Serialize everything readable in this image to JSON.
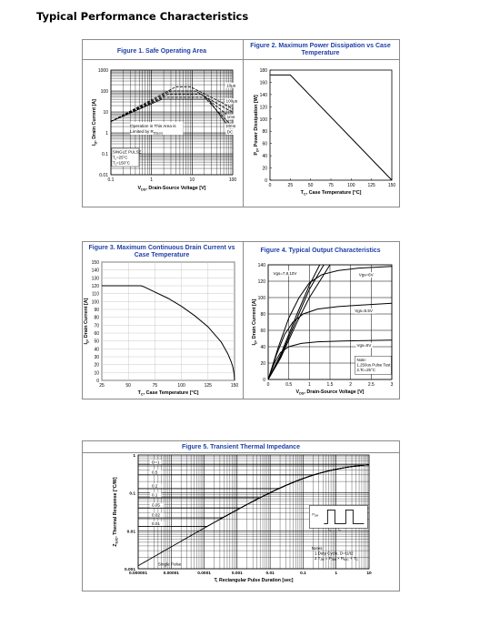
{
  "page": {
    "heading": "Typical Performance Characteristics"
  },
  "chart_data": [
    {
      "id": "fig1",
      "type": "line",
      "title": "Figure 1. Safe Operating Area",
      "xlabel_pre": "V",
      "xlabel_sub": "DS",
      "xlabel_post": ", Drain-Source Voltage [V]",
      "ylabel_pre": "I",
      "ylabel_sub": "D",
      "ylabel_post": ", Drain Current [A]",
      "xscale": "log",
      "yscale": "log",
      "xlim": [
        0.1,
        100
      ],
      "ylim": [
        0.01,
        1000
      ],
      "xticks": [
        {
          "v": 0.1,
          "label": "0.1"
        },
        {
          "v": 1,
          "label": "1"
        },
        {
          "v": 10,
          "label": "10"
        },
        {
          "v": 100,
          "label": "100"
        }
      ],
      "yticks": [
        {
          "v": 0.01,
          "label": "0.01"
        },
        {
          "v": 0.1,
          "label": "0.1"
        },
        {
          "v": 1,
          "label": "1"
        },
        {
          "v": 10,
          "label": "10"
        },
        {
          "v": 100,
          "label": "100"
        },
        {
          "v": 1000,
          "label": "1000"
        }
      ],
      "series": [
        {
          "name": "10µs",
          "dash": true,
          "points": [
            [
              0.1,
              3.5
            ],
            [
              4,
              160
            ],
            [
              9,
              160
            ],
            [
              60,
              25
            ],
            [
              100,
              14
            ]
          ]
        },
        {
          "name": "100µs",
          "dash": true,
          "points": [
            [
              0.1,
              3.5
            ],
            [
              3,
              100
            ],
            [
              12,
              100
            ],
            [
              70,
              14
            ],
            [
              100,
              10
            ]
          ]
        },
        {
          "name": "1ms",
          "dash": true,
          "points": [
            [
              0.1,
              3.5
            ],
            [
              2.5,
              70
            ],
            [
              17,
              70
            ],
            [
              75,
              7
            ],
            [
              100,
              5
            ]
          ]
        },
        {
          "name": "10ms",
          "dash": true,
          "points": [
            [
              0.1,
              3.5
            ],
            [
              2,
              50
            ],
            [
              20,
              50
            ],
            [
              80,
              3
            ],
            [
              100,
              2.2
            ]
          ]
        },
        {
          "name": "DC",
          "dash": false,
          "points": [
            [
              0.1,
              3.5
            ],
            [
              1.8,
              40
            ],
            [
              25,
              40
            ],
            [
              85,
              1.6
            ],
            [
              100,
              1.2
            ]
          ]
        }
      ],
      "labels": [
        {
          "text": "10µs",
          "x": 70,
          "y": 160
        },
        {
          "text": "100µs",
          "x": 68,
          "y": 28
        },
        {
          "text": "1ms",
          "x": 72,
          "y": 5
        },
        {
          "text": "10ms",
          "x": 66,
          "y": 1.8
        },
        {
          "text": "DC",
          "x": 72,
          "y": 0.95
        }
      ],
      "notes": [
        "Operation in This Area is",
        "Limited by R"
      ],
      "notes_sub": "DS(on)",
      "pulse_note": [
        "SINGLE PULSE",
        "T=25°C",
        "T=150°C"
      ],
      "pulse_subs": [
        "c",
        "J"
      ]
    },
    {
      "id": "fig2",
      "type": "line",
      "title": [
        "Figure 2. Maximum Power Dissipation vs Case",
        "Temperature"
      ],
      "xlabel_pre": "T",
      "xlabel_sub": "C",
      "xlabel_post": ", Case Temperature [°C]",
      "ylabel_pre": "P",
      "ylabel_sub": "D",
      "ylabel_post": ", Power Dissipation [W]",
      "xlim": [
        0,
        150
      ],
      "ylim": [
        0,
        180
      ],
      "xticks": [
        0,
        25,
        50,
        75,
        100,
        125,
        150
      ],
      "yticks": [
        0,
        20,
        40,
        60,
        80,
        100,
        120,
        140,
        160,
        180
      ],
      "series": [
        {
          "points": [
            [
              0,
              172
            ],
            [
              25,
              172
            ],
            [
              150,
              0
            ]
          ]
        }
      ]
    },
    {
      "id": "fig3",
      "type": "line",
      "title": [
        "Figure 3. Maximum Continuous Drain Current vs",
        "Case Temperature"
      ],
      "xlabel_pre": "T",
      "xlabel_sub": "C",
      "xlabel_post": ", Case Temperature [°C]",
      "ylabel_pre": "I",
      "ylabel_sub": "D",
      "ylabel_post": ", Drain Current [A]",
      "xlim": [
        25,
        150
      ],
      "ylim": [
        0,
        150
      ],
      "xticks": [
        25,
        50,
        75,
        100,
        125,
        150
      ],
      "yticks": [
        0,
        10,
        20,
        30,
        40,
        50,
        60,
        70,
        80,
        90,
        100,
        110,
        120,
        130,
        140,
        150
      ],
      "series": [
        {
          "points": [
            [
              25,
              120
            ],
            [
              62,
              120
            ],
            [
              65,
              118.5
            ],
            [
              75,
              112
            ],
            [
              87.5,
              104
            ],
            [
              100,
              94
            ],
            [
              112.5,
              82
            ],
            [
              125,
              68
            ],
            [
              137.5,
              48.5
            ],
            [
              143.75,
              33.5
            ],
            [
              146.875,
              23.5
            ],
            [
              148.4375,
              16.8
            ],
            [
              149.6,
              8.2
            ],
            [
              150,
              0
            ]
          ]
        }
      ]
    },
    {
      "id": "fig4",
      "type": "line",
      "title": "Figure 4. Typical Output Characteristics",
      "xlabel_pre": "V",
      "xlabel_sub": "DS",
      "xlabel_post": ", Drain-Source Voltage [V]",
      "ylabel_pre": "I",
      "ylabel_sub": "D",
      "ylabel_post": ", Drain Current [A]",
      "xlim": [
        0,
        3
      ],
      "ylim": [
        0,
        140
      ],
      "xticks": [
        {
          "v": 0,
          "label": "0"
        },
        {
          "v": 0.5,
          "label": "0.5"
        },
        {
          "v": 1,
          "label": "1"
        },
        {
          "v": 1.5,
          "label": "1.5"
        },
        {
          "v": 2,
          "label": "2"
        },
        {
          "v": 2.5,
          "label": "2.5"
        },
        {
          "v": 3,
          "label": "3"
        }
      ],
      "yticks": [
        0,
        20,
        40,
        60,
        80,
        100,
        120,
        140
      ],
      "series": [
        {
          "name": "Vgs=10V",
          "points": [
            [
              0,
              0
            ],
            [
              0.3,
              30
            ],
            [
              0.7,
              80
            ],
            [
              1.0,
              115
            ],
            [
              1.25,
              140
            ]
          ]
        },
        {
          "name": "Vgs=8V",
          "points": [
            [
              0,
              0
            ],
            [
              0.3,
              28
            ],
            [
              0.7,
              75
            ],
            [
              1.0,
              110
            ],
            [
              1.35,
              140
            ]
          ]
        },
        {
          "name": "Vgs=7V",
          "points": [
            [
              0,
              0
            ],
            [
              0.3,
              26
            ],
            [
              0.7,
              70
            ],
            [
              1.0,
              100
            ],
            [
              1.5,
              140
            ]
          ]
        },
        {
          "name": "Vgs=6V",
          "points": [
            [
              0,
              0
            ],
            [
              0.25,
              40
            ],
            [
              0.5,
              75
            ],
            [
              0.75,
              100
            ],
            [
              1.0,
              118
            ],
            [
              1.3,
              128
            ],
            [
              1.7,
              133
            ],
            [
              2.2,
              136
            ],
            [
              3,
              138
            ]
          ]
        },
        {
          "name": "Vgs=5.5V",
          "points": [
            [
              0,
              0
            ],
            [
              0.2,
              30
            ],
            [
              0.4,
              55
            ],
            [
              0.6,
              70
            ],
            [
              0.85,
              80
            ],
            [
              1.2,
              86
            ],
            [
              1.7,
              89
            ],
            [
              2.3,
              91
            ],
            [
              3,
              93
            ]
          ]
        },
        {
          "name": "Vgs=5V",
          "points": [
            [
              0,
              0
            ],
            [
              0.15,
              20
            ],
            [
              0.3,
              33
            ],
            [
              0.5,
              40
            ],
            [
              0.8,
              44
            ],
            [
              1.2,
              46
            ],
            [
              1.8,
              47
            ],
            [
              3,
              48
            ]
          ]
        }
      ],
      "labels": [
        {
          "text": "Vgs=7,8,10V",
          "x": 0.12,
          "y": 128
        },
        {
          "text": "Vgs=6V",
          "x": 2.2,
          "y": 126
        },
        {
          "text": "Vgs=5.5V",
          "x": 2.1,
          "y": 82
        },
        {
          "text": "Vgs=5V",
          "x": 2.15,
          "y": 40
        }
      ],
      "note": [
        "Note:",
        "1.250us Pulse Test",
        "2.Tc=25°C"
      ]
    },
    {
      "id": "fig5",
      "type": "line",
      "title": "Figure 5. Transient Thermal Impedance",
      "xlabel": "T, Rectangular Pulse Duration [sec]",
      "ylabel_pre": "Z",
      "ylabel_sub": "θJC",
      "ylabel_post": ", Thermal Response [°C/W]",
      "xscale": "log",
      "yscale": "log",
      "xlim": [
        1e-06,
        10
      ],
      "ylim": [
        0.001,
        1
      ],
      "xticks": [
        {
          "v": 1e-06,
          "label": "0.000001"
        },
        {
          "v": 1e-05,
          "label": "0.00001"
        },
        {
          "v": 0.0001,
          "label": "0.0001"
        },
        {
          "v": 0.001,
          "label": "0.001"
        },
        {
          "v": 0.01,
          "label": "0.01"
        },
        {
          "v": 0.1,
          "label": "0.1"
        },
        {
          "v": 1,
          "label": "1"
        },
        {
          "v": 10,
          "label": "10"
        }
      ],
      "yticks": [
        {
          "v": 0.001,
          "label": "0.001"
        },
        {
          "v": 0.01,
          "label": "0.01"
        },
        {
          "v": 0.1,
          "label": "0.1"
        },
        {
          "v": 1,
          "label": "1"
        }
      ],
      "series": [
        {
          "name": "D=1",
          "plateau": 0.55
        },
        {
          "name": "0.5",
          "plateau": 0.3
        },
        {
          "name": "0.2",
          "plateau": 0.13
        },
        {
          "name": "0.1",
          "plateau": 0.075
        },
        {
          "name": "0.05",
          "plateau": 0.04
        },
        {
          "name": "0.02",
          "plateau": 0.022
        },
        {
          "name": "0.01",
          "plateau": 0.013
        },
        {
          "name": "Single Pulse",
          "plateau": 0
        }
      ],
      "notes": [
        "Notes:",
        "1.Duty Cycle, D=t1/t2",
        "2.T = P × R + T"
      ],
      "note_subs": [
        "JM",
        "DM",
        "θJC",
        "C"
      ],
      "pdm": "P",
      "pdm_sub": "DM",
      "t1": "t",
      "t1_sub": "1",
      "t2": "t",
      "t2_sub": "2",
      "zjc_final": 0.65
    }
  ]
}
